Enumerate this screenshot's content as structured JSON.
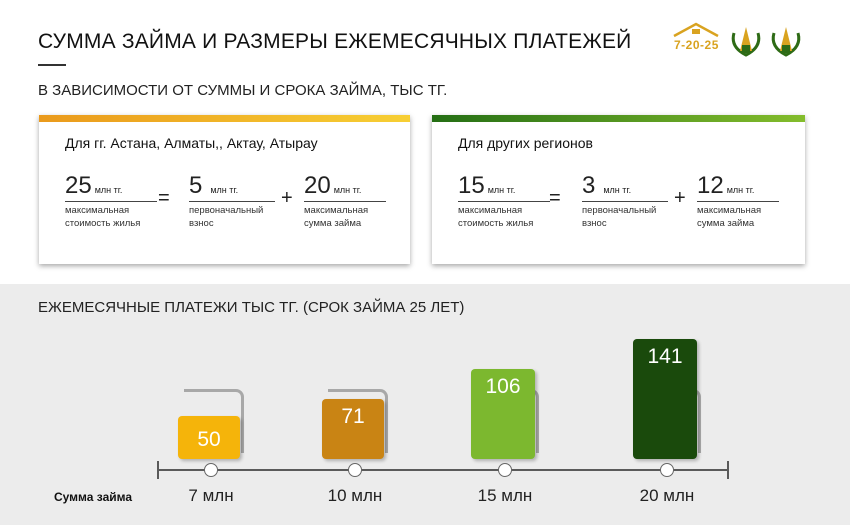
{
  "header": {
    "title": "СУММА ЗАЙМА И РАЗМЕРЫ ЕЖЕМЕСЯЧНЫХ ПЛАТЕЖЕЙ",
    "subtitle": "В ЗАВИСИМОСТИ ОТ СУММЫ И СРОКА ЗАЙМА, ТЫС ТГ.",
    "logo_text": "7-20-25",
    "colors": {
      "gold": "#d9a320",
      "green": "#2e6b16"
    }
  },
  "cards": [
    {
      "title": "Для гг. Астана, Алматы,, Актау, Атырау",
      "accent": [
        "#ea9a1c",
        "#f7cf34"
      ],
      "housing": {
        "value": "25",
        "unit": "млн тг.",
        "caption": "максимальная стоимость жилья"
      },
      "equals": "=",
      "down_payment": {
        "value": "5",
        "unit": "млн тг.",
        "caption": "первоначальный взнос"
      },
      "plus": "+",
      "loan": {
        "value": "20",
        "unit": "млн тг.",
        "caption": "максимальная сумма займа"
      }
    },
    {
      "title": "Для других регионов",
      "accent": [
        "#246e14",
        "#84bd2c"
      ],
      "housing": {
        "value": "15",
        "unit": "млн тг.",
        "caption": "максимальная стоимость жилья"
      },
      "equals": "=",
      "down_payment": {
        "value": "3",
        "unit": "млн тг.",
        "caption": "первоначальный взнос"
      },
      "plus": "+",
      "loan": {
        "value": "12",
        "unit": "млн тг.",
        "caption": "максимальная сумма займа"
      }
    }
  ],
  "payments": {
    "title": "ЕЖЕМЕСЯЧНЫЕ ПЛАТЕЖИ ТЫС ТГ. (СРОК ЗАЙМА 25 ЛЕТ)",
    "axis_caption": "Сумма займа"
  },
  "chart_data": {
    "type": "bar",
    "title": "ЕЖЕМЕСЯЧНЫЕ ПЛАТЕЖИ ТЫС ТГ. (СРОК ЗАЙМА 25 ЛЕТ)",
    "xlabel": "Сумма займа",
    "ylabel": "",
    "categories": [
      "7 млн",
      "10 млн",
      "15 млн",
      "20 млн"
    ],
    "values": [
      50,
      71,
      106,
      141
    ],
    "colors": [
      "#f5b40a",
      "#c98414",
      "#7cb82f",
      "#1a4a0c"
    ],
    "ylim": [
      0,
      141
    ],
    "grid": false,
    "legend": "none"
  }
}
